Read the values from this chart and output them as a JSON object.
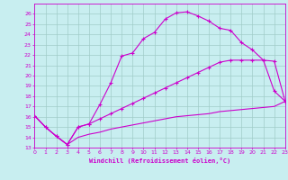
{
  "xlabel": "Windchill (Refroidissement éolien,°C)",
  "xlim": [
    0,
    23
  ],
  "ylim": [
    13,
    27
  ],
  "xticks": [
    0,
    1,
    2,
    3,
    4,
    5,
    6,
    7,
    8,
    9,
    10,
    11,
    12,
    13,
    14,
    15,
    16,
    17,
    18,
    19,
    20,
    21,
    22,
    23
  ],
  "yticks": [
    13,
    14,
    15,
    16,
    17,
    18,
    19,
    20,
    21,
    22,
    23,
    24,
    25,
    26
  ],
  "bg_color": "#c8eef0",
  "line_color": "#cc00cc",
  "grid_color": "#a0ccc8",
  "curve1_x": [
    0,
    1,
    2,
    3,
    4,
    5,
    6,
    7,
    8,
    9,
    10,
    11,
    12,
    13,
    14,
    15,
    16,
    17,
    18,
    19,
    20,
    21,
    22,
    23
  ],
  "curve1_y": [
    16.1,
    15.0,
    14.1,
    13.3,
    15.0,
    15.3,
    17.2,
    19.3,
    21.9,
    22.2,
    23.6,
    24.2,
    25.5,
    26.1,
    26.2,
    25.8,
    25.3,
    24.6,
    24.4,
    23.2,
    22.5,
    21.5,
    21.4,
    17.5
  ],
  "curve2_x": [
    0,
    1,
    2,
    3,
    4,
    5,
    6,
    7,
    8,
    9,
    10,
    11,
    12,
    13,
    14,
    15,
    16,
    17,
    18,
    19,
    20,
    21,
    22,
    23
  ],
  "curve2_y": [
    16.1,
    15.0,
    14.1,
    13.3,
    15.0,
    15.3,
    15.8,
    16.3,
    16.8,
    17.3,
    17.8,
    18.3,
    18.8,
    19.3,
    19.8,
    20.3,
    20.8,
    21.3,
    21.5,
    21.5,
    21.5,
    21.5,
    18.5,
    17.5
  ],
  "curve3_x": [
    0,
    1,
    2,
    3,
    4,
    5,
    6,
    7,
    8,
    9,
    10,
    11,
    12,
    13,
    14,
    15,
    16,
    17,
    18,
    19,
    20,
    21,
    22,
    23
  ],
  "curve3_y": [
    16.1,
    15.0,
    14.1,
    13.3,
    14.0,
    14.3,
    14.5,
    14.8,
    15.0,
    15.2,
    15.4,
    15.6,
    15.8,
    16.0,
    16.1,
    16.2,
    16.3,
    16.5,
    16.6,
    16.7,
    16.8,
    16.9,
    17.0,
    17.5
  ]
}
